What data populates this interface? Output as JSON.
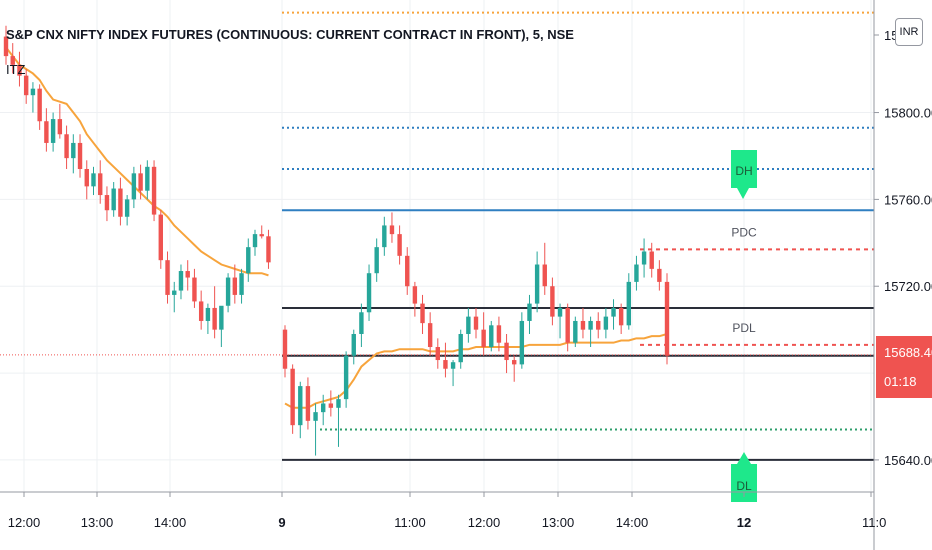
{
  "chart_title": "S&P CNX NIFTY INDEX FUTURES (CONTINUOUS: CURRENT CONTRACT IN FRONT), 5, NSE",
  "indicator_label": "ITZ",
  "currency": "INR",
  "colors": {
    "up": "#26a69a",
    "down": "#ef5350",
    "vwap": "#f7a43c",
    "blue_level": "#2f7fc1",
    "green_level": "#2e9e6b",
    "orange_level": "#f7a43c",
    "black_level": "#2a2e39",
    "marker": "#1ee88b",
    "red_dash": "#ef5350",
    "grid": "#eef0f3",
    "axis_text": "#131722"
  },
  "chart_data": {
    "type": "candlestick",
    "title": "S&P CNX NIFTY INDEX FUTURES (CONTINUOUS: CURRENT CONTRACT IN FRONT), 5, NSE",
    "y_ticks": [
      "15800.00",
      "15760.00",
      "15720.00",
      "15640.00"
    ],
    "y_tick_values": [
      15800,
      15760,
      15720,
      15640
    ],
    "top_partial_tick": "15",
    "ylim": [
      15614,
      15850
    ],
    "current_price": "15688.40",
    "countdown": "01:18",
    "x_ticks": [
      {
        "label": "12:00",
        "bold": false
      },
      {
        "label": "13:00",
        "bold": false
      },
      {
        "label": "14:00",
        "bold": false
      },
      {
        "label": "9",
        "bold": true
      },
      {
        "label": "11:00",
        "bold": false
      },
      {
        "label": "12:00",
        "bold": false
      },
      {
        "label": "13:00",
        "bold": false
      },
      {
        "label": "14:00",
        "bold": false
      },
      {
        "label": "12",
        "bold": true
      },
      {
        "label": "11:0",
        "bold": false
      }
    ],
    "levels": [
      {
        "name": "orange-top",
        "value": 15846
      },
      {
        "name": "blue-upper",
        "value": 15793
      },
      {
        "name": "blue-mid",
        "value": 15774
      },
      {
        "name": "blue-solid",
        "value": 15755
      },
      {
        "name": "pdh-black",
        "value": 15710
      },
      {
        "name": "pdl-black",
        "value": 15688
      },
      {
        "name": "green-dotted",
        "value": 15654
      },
      {
        "name": "black-low",
        "value": 15640
      }
    ],
    "labels": [
      {
        "text": "DH",
        "kind": "marker-down"
      },
      {
        "text": "PDC",
        "kind": "text"
      },
      {
        "text": "PDL",
        "kind": "text"
      },
      {
        "text": "DL",
        "kind": "marker-up"
      }
    ],
    "session1": [
      [
        15835,
        15840,
        15822,
        15826
      ],
      [
        15826,
        15832,
        15818,
        15822
      ],
      [
        15822,
        15828,
        15812,
        15817
      ],
      [
        15817,
        15820,
        15804,
        15808
      ],
      [
        15808,
        15814,
        15800,
        15811
      ],
      [
        15811,
        15813,
        15792,
        15796
      ],
      [
        15796,
        15802,
        15782,
        15786
      ],
      [
        15786,
        15800,
        15782,
        15797
      ],
      [
        15797,
        15804,
        15788,
        15790
      ],
      [
        15790,
        15794,
        15774,
        15779
      ],
      [
        15779,
        15790,
        15772,
        15786
      ],
      [
        15786,
        15790,
        15770,
        15774
      ],
      [
        15774,
        15778,
        15760,
        15766
      ],
      [
        15766,
        15775,
        15762,
        15772
      ],
      [
        15772,
        15778,
        15758,
        15762
      ],
      [
        15762,
        15766,
        15750,
        15755
      ],
      [
        15755,
        15768,
        15752,
        15765
      ],
      [
        15765,
        15770,
        15748,
        15752
      ],
      [
        15752,
        15762,
        15748,
        15760
      ],
      [
        15760,
        15775,
        15756,
        15772
      ],
      [
        15772,
        15776,
        15760,
        15764
      ],
      [
        15764,
        15778,
        15760,
        15775
      ],
      [
        15775,
        15778,
        15750,
        15753
      ],
      [
        15753,
        15755,
        15728,
        15732
      ],
      [
        15732,
        15736,
        15712,
        15716
      ],
      [
        15716,
        15722,
        15708,
        15718
      ],
      [
        15718,
        15730,
        15714,
        15727
      ],
      [
        15727,
        15732,
        15718,
        15724
      ],
      [
        15724,
        15728,
        15710,
        15713
      ],
      [
        15713,
        15718,
        15700,
        15704
      ],
      [
        15704,
        15712,
        15698,
        15710
      ],
      [
        15710,
        15720,
        15696,
        15700
      ],
      [
        15700,
        15706,
        15692,
        15711
      ],
      [
        15711,
        15726,
        15708,
        15724
      ],
      [
        15724,
        15730,
        15712,
        15716
      ],
      [
        15716,
        15728,
        15712,
        15726
      ],
      [
        15726,
        15742,
        15722,
        15738
      ],
      [
        15738,
        15746,
        15734,
        15744
      ],
      [
        15744,
        15748,
        15742,
        15743
      ],
      [
        15743,
        15746,
        15728,
        15731
      ]
    ],
    "session2": [
      [
        15700,
        15702,
        15678,
        15682
      ],
      [
        15682,
        15684,
        15652,
        15656
      ],
      [
        15656,
        15676,
        15650,
        15674
      ],
      [
        15674,
        15678,
        15654,
        15658
      ],
      [
        15658,
        15666,
        15642,
        15662
      ],
      [
        15662,
        15670,
        15656,
        15666
      ],
      [
        15666,
        15672,
        15660,
        15664
      ],
      [
        15664,
        15670,
        15646,
        15668
      ],
      [
        15668,
        15690,
        15664,
        15688
      ],
      [
        15688,
        15700,
        15684,
        15698
      ],
      [
        15698,
        15712,
        15692,
        15708
      ],
      [
        15708,
        15730,
        15704,
        15726
      ],
      [
        15726,
        15742,
        15722,
        15738
      ],
      [
        15738,
        15752,
        15734,
        15748
      ],
      [
        15748,
        15754,
        15740,
        15744
      ],
      [
        15744,
        15748,
        15730,
        15734
      ],
      [
        15734,
        15738,
        15716,
        15720
      ],
      [
        15720,
        15722,
        15706,
        15712
      ],
      [
        15712,
        15716,
        15698,
        15703
      ],
      [
        15703,
        15708,
        15688,
        15692
      ],
      [
        15692,
        15696,
        15682,
        15686
      ],
      [
        15686,
        15694,
        15678,
        15682
      ],
      [
        15682,
        15686,
        15674,
        15685
      ],
      [
        15685,
        15700,
        15682,
        15698
      ],
      [
        15698,
        15710,
        15694,
        15706
      ],
      [
        15706,
        15710,
        15696,
        15700
      ],
      [
        15700,
        15708,
        15688,
        15692
      ],
      [
        15692,
        15704,
        15690,
        15702
      ],
      [
        15702,
        15706,
        15690,
        15694
      ],
      [
        15694,
        15698,
        15680,
        15686
      ],
      [
        15686,
        15688,
        15676,
        15684
      ],
      [
        15684,
        15708,
        15682,
        15704
      ],
      [
        15704,
        15716,
        15698,
        15712
      ],
      [
        15712,
        15736,
        15708,
        15730
      ],
      [
        15730,
        15740,
        15716,
        15720
      ],
      [
        15720,
        15724,
        15702,
        15706
      ],
      [
        15706,
        15712,
        15696,
        15710
      ],
      [
        15710,
        15712,
        15690,
        15694
      ],
      [
        15694,
        15706,
        15692,
        15704
      ],
      [
        15704,
        15710,
        15696,
        15700
      ],
      [
        15700,
        15706,
        15692,
        15704
      ],
      [
        15704,
        15708,
        15696,
        15700
      ],
      [
        15700,
        15710,
        15696,
        15706
      ],
      [
        15706,
        15714,
        15700,
        15710
      ],
      [
        15710,
        15712,
        15698,
        15702
      ],
      [
        15702,
        15726,
        15700,
        15722
      ],
      [
        15722,
        15734,
        15718,
        15730
      ],
      [
        15730,
        15742,
        15724,
        15736
      ],
      [
        15736,
        15740,
        15724,
        15728
      ],
      [
        15728,
        15732,
        15718,
        15722
      ],
      [
        15722,
        15726,
        15684,
        15688
      ]
    ],
    "vwap_session1": [
      15830,
      15826,
      15822,
      15820,
      15818,
      15815,
      15810,
      15806,
      15805,
      15804,
      15800,
      15796,
      15790,
      15786,
      15782,
      15778,
      15775,
      15772,
      15769,
      15766,
      15763,
      15760,
      15757,
      15755,
      15752,
      15748,
      15745,
      15742,
      15739,
      15736,
      15734,
      15732,
      15730,
      15729,
      15728,
      15727,
      15726,
      15726,
      15726,
      15725
    ],
    "vwap_session2": [
      15666,
      15664,
      15664,
      15664,
      15666,
      15667,
      15668,
      15669,
      15672,
      15677,
      15683,
      15686,
      15689,
      15690,
      15690,
      15691,
      15691,
      15691,
      15691,
      15690,
      15690,
      15690,
      15690,
      15691,
      15691,
      15692,
      15692,
      15692,
      15692,
      15692,
      15692,
      15692,
      15693,
      15693,
      15693,
      15693,
      15693,
      15694,
      15694,
      15694,
      15694,
      15694,
      15694,
      15694,
      15695,
      15695,
      15696,
      15696,
      15697,
      15697,
      15698
    ]
  }
}
